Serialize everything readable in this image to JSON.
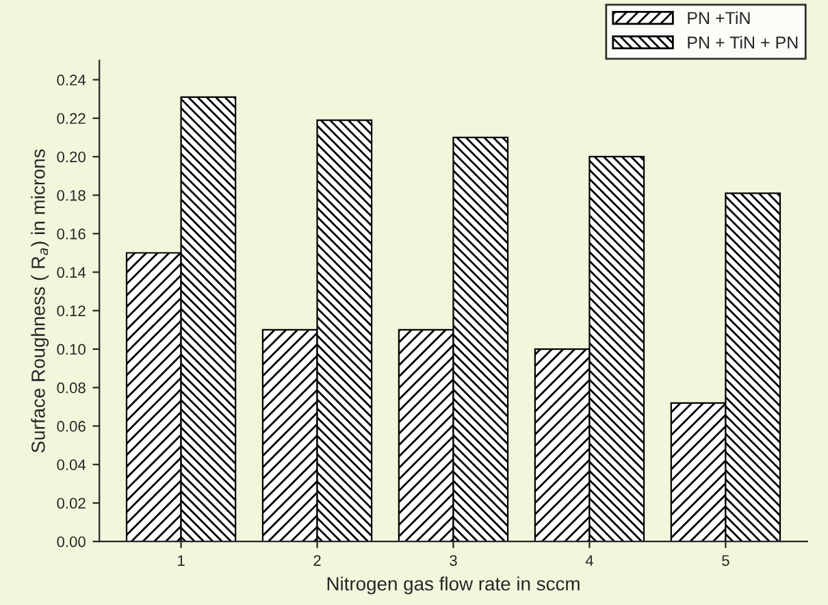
{
  "chart_data": {
    "type": "bar",
    "xlabel": "Nitrogen gas flow rate in sccm",
    "ylabel": "Surface Roughness ( R$_{a}$) in microns",
    "categories": [
      "1",
      "2",
      "3",
      "4",
      "5"
    ],
    "series": [
      {
        "name": "PN +TiN",
        "color": "#000000",
        "values": [
          0.15,
          0.11,
          0.11,
          0.1,
          0.072
        ]
      },
      {
        "name": "PN + TiN + PN",
        "color": "#000000",
        "values": [
          0.231,
          0.219,
          0.21,
          0.2,
          0.181
        ]
      }
    ],
    "ylim": [
      0,
      0.25
    ],
    "yticks": [
      {
        "value": 0,
        "label": "0.00"
      },
      {
        "value": 0.02,
        "label": "0.02"
      },
      {
        "value": 0.04,
        "label": "0.04"
      },
      {
        "value": 0.06,
        "label": "0.06"
      },
      {
        "value": 0.08,
        "label": "0.08"
      },
      {
        "value": 0.1,
        "label": "0.10"
      },
      {
        "value": 0.12,
        "label": "0.12"
      },
      {
        "value": 0.14,
        "label": "0.14"
      },
      {
        "value": 0.16,
        "label": "0.16"
      },
      {
        "value": 0.18,
        "label": "0.18"
      },
      {
        "value": 0.2,
        "label": "0.20"
      },
      {
        "value": 0.22,
        "label": "0.22"
      },
      {
        "value": 0.24,
        "label": "0.24"
      }
    ],
    "grid": false,
    "legend": "top right"
  }
}
